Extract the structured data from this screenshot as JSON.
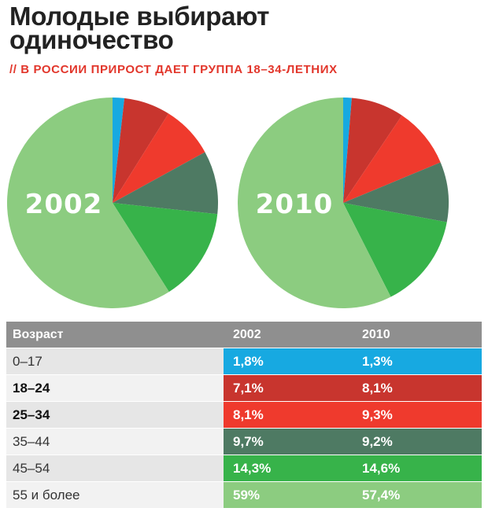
{
  "header": {
    "title_line1": "Молодые выбирают",
    "title_line2": "одиночество",
    "subtitle": "// В РОССИИ ПРИРОСТ ДАЕТ ГРУППА 18–34-ЛЕТНИХ"
  },
  "chart_data": [
    {
      "type": "pie",
      "label": "2002",
      "categories": [
        "0–17",
        "18–24",
        "25–34",
        "35–44",
        "45–54",
        "55 и более"
      ],
      "values": [
        1.8,
        7.1,
        8.1,
        9.7,
        14.3,
        59.0
      ],
      "colors": [
        "#17a9e1",
        "#c8352e",
        "#ef3a2d",
        "#4e7a63",
        "#37b34a",
        "#8ccc80"
      ]
    },
    {
      "type": "pie",
      "label": "2010",
      "categories": [
        "0–17",
        "18–24",
        "25–34",
        "35–44",
        "45–54",
        "55 и более"
      ],
      "values": [
        1.3,
        8.1,
        9.3,
        9.2,
        14.6,
        57.4
      ],
      "colors": [
        "#17a9e1",
        "#c8352e",
        "#ef3a2d",
        "#4e7a63",
        "#37b34a",
        "#8ccc80"
      ]
    }
  ],
  "table": {
    "headers": [
      "Возраст",
      "2002",
      "2010"
    ],
    "rows": [
      {
        "age": "0–17",
        "bold": false,
        "v2002": "1,8%",
        "v2010": "1,3%",
        "color": "#17a9e1"
      },
      {
        "age": "18–24",
        "bold": true,
        "v2002": "7,1%",
        "v2010": "8,1%",
        "color": "#c8352e"
      },
      {
        "age": "25–34",
        "bold": true,
        "v2002": "8,1%",
        "v2010": "9,3%",
        "color": "#ef3a2d"
      },
      {
        "age": "35–44",
        "bold": false,
        "v2002": "9,7%",
        "v2010": "9,2%",
        "color": "#4e7a63"
      },
      {
        "age": "45–54",
        "bold": false,
        "v2002": "14,3%",
        "v2010": "14,6%",
        "color": "#37b34a"
      },
      {
        "age": "55 и более",
        "bold": false,
        "v2002": "59%",
        "v2010": "57,4%",
        "color": "#8ccc80"
      }
    ]
  }
}
